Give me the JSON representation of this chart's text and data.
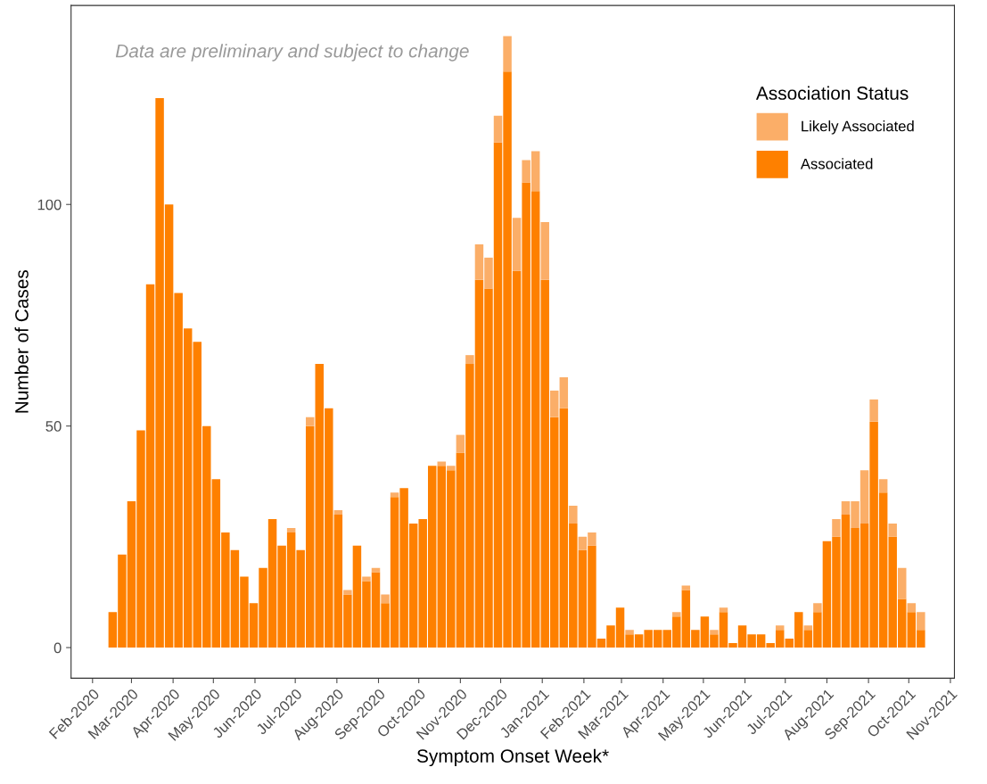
{
  "chart_data": {
    "type": "bar",
    "stacked": true,
    "xlabel": "Symptom Onset Week*",
    "ylabel": "Number of Cases",
    "legend_title": "Association Status",
    "annotations": [
      "Data are preliminary and subject to change"
    ],
    "x": [
      "2020-02-16",
      "2020-02-23",
      "2020-03-01",
      "2020-03-08",
      "2020-03-15",
      "2020-03-22",
      "2020-03-29",
      "2020-04-05",
      "2020-04-12",
      "2020-04-19",
      "2020-04-26",
      "2020-05-03",
      "2020-05-10",
      "2020-05-17",
      "2020-05-24",
      "2020-05-31",
      "2020-06-07",
      "2020-06-14",
      "2020-06-21",
      "2020-06-28",
      "2020-07-05",
      "2020-07-12",
      "2020-07-19",
      "2020-07-26",
      "2020-08-02",
      "2020-08-09",
      "2020-08-16",
      "2020-08-23",
      "2020-08-30",
      "2020-09-06",
      "2020-09-13",
      "2020-09-20",
      "2020-09-27",
      "2020-10-04",
      "2020-10-11",
      "2020-10-18",
      "2020-10-25",
      "2020-11-01",
      "2020-11-08",
      "2020-11-15",
      "2020-11-22",
      "2020-11-29",
      "2020-12-06",
      "2020-12-13",
      "2020-12-20",
      "2020-12-27",
      "2021-01-03",
      "2021-01-10",
      "2021-01-17",
      "2021-01-24",
      "2021-01-31",
      "2021-02-07",
      "2021-02-14",
      "2021-02-21",
      "2021-02-28",
      "2021-03-07",
      "2021-03-14",
      "2021-03-21",
      "2021-03-28",
      "2021-04-04",
      "2021-04-11",
      "2021-04-18",
      "2021-04-25",
      "2021-05-02",
      "2021-05-09",
      "2021-05-16",
      "2021-05-23",
      "2021-05-30",
      "2021-06-06",
      "2021-06-13",
      "2021-06-20",
      "2021-06-27",
      "2021-07-04",
      "2021-07-11",
      "2021-07-18",
      "2021-07-25",
      "2021-08-01",
      "2021-08-08",
      "2021-08-15",
      "2021-08-22",
      "2021-08-29",
      "2021-09-05",
      "2021-09-12",
      "2021-09-19",
      "2021-09-26",
      "2021-10-03",
      "2021-10-10"
    ],
    "series": [
      {
        "name": "Associated",
        "color": "#fe8000",
        "values": [
          8,
          21,
          33,
          49,
          82,
          124,
          100,
          80,
          72,
          69,
          50,
          38,
          26,
          22,
          16,
          10,
          18,
          29,
          23,
          26,
          22,
          50,
          64,
          54,
          30,
          12,
          23,
          15,
          17,
          10,
          34,
          36,
          28,
          29,
          41,
          41,
          40,
          44,
          64,
          83,
          81,
          114,
          130,
          85,
          105,
          103,
          83,
          52,
          54,
          28,
          22,
          23,
          2,
          5,
          9,
          3,
          3,
          4,
          4,
          4,
          7,
          13,
          4,
          7,
          3,
          8,
          1,
          5,
          3,
          3,
          1,
          4,
          2,
          8,
          4,
          8,
          24,
          25,
          30,
          27,
          28,
          51,
          35,
          25,
          11,
          8,
          4
        ]
      },
      {
        "name": "Likely Associated",
        "color": "#fbae68",
        "values": [
          0,
          0,
          0,
          0,
          0,
          0,
          0,
          0,
          0,
          0,
          0,
          0,
          0,
          0,
          0,
          0,
          0,
          0,
          0,
          1,
          0,
          2,
          0,
          0,
          1,
          1,
          0,
          1,
          1,
          2,
          1,
          0,
          0,
          0,
          0,
          1,
          1,
          4,
          2,
          8,
          7,
          6,
          8,
          12,
          5,
          9,
          13,
          6,
          7,
          4,
          3,
          3,
          0,
          0,
          0,
          1,
          0,
          0,
          0,
          0,
          1,
          1,
          0,
          0,
          1,
          1,
          0,
          0,
          0,
          0,
          0,
          1,
          0,
          0,
          1,
          2,
          0,
          4,
          3,
          6,
          12,
          5,
          3,
          3,
          7,
          2,
          4
        ]
      }
    ],
    "xlim": [
      "2020-01-16",
      "2021-11-04"
    ],
    "xticks": [
      {
        "value": "2020-02-01",
        "label": "Feb-2020"
      },
      {
        "value": "2020-03-01",
        "label": "Mar-2020"
      },
      {
        "value": "2020-04-01",
        "label": "Apr-2020"
      },
      {
        "value": "2020-05-01",
        "label": "May-2020"
      },
      {
        "value": "2020-06-01",
        "label": "Jun-2020"
      },
      {
        "value": "2020-07-01",
        "label": "Jul-2020"
      },
      {
        "value": "2020-08-01",
        "label": "Aug-2020"
      },
      {
        "value": "2020-09-01",
        "label": "Sep-2020"
      },
      {
        "value": "2020-10-01",
        "label": "Oct-2020"
      },
      {
        "value": "2020-11-01",
        "label": "Nov-2020"
      },
      {
        "value": "2020-12-01",
        "label": "Dec-2020"
      },
      {
        "value": "2021-01-01",
        "label": "Jan-2021"
      },
      {
        "value": "2021-02-01",
        "label": "Feb-2021"
      },
      {
        "value": "2021-03-01",
        "label": "Mar-2021"
      },
      {
        "value": "2021-04-01",
        "label": "Apr-2021"
      },
      {
        "value": "2021-05-01",
        "label": "May-2021"
      },
      {
        "value": "2021-06-01",
        "label": "Jun-2021"
      },
      {
        "value": "2021-07-01",
        "label": "Jul-2021"
      },
      {
        "value": "2021-08-01",
        "label": "Aug-2021"
      },
      {
        "value": "2021-09-01",
        "label": "Sep-2021"
      },
      {
        "value": "2021-10-01",
        "label": "Oct-2021"
      },
      {
        "value": "2021-11-01",
        "label": "Nov-2021"
      }
    ],
    "ylim": [
      -6.9,
      144.9
    ],
    "yticks": [
      0,
      50,
      100
    ],
    "grid": false,
    "legend": "top right"
  }
}
